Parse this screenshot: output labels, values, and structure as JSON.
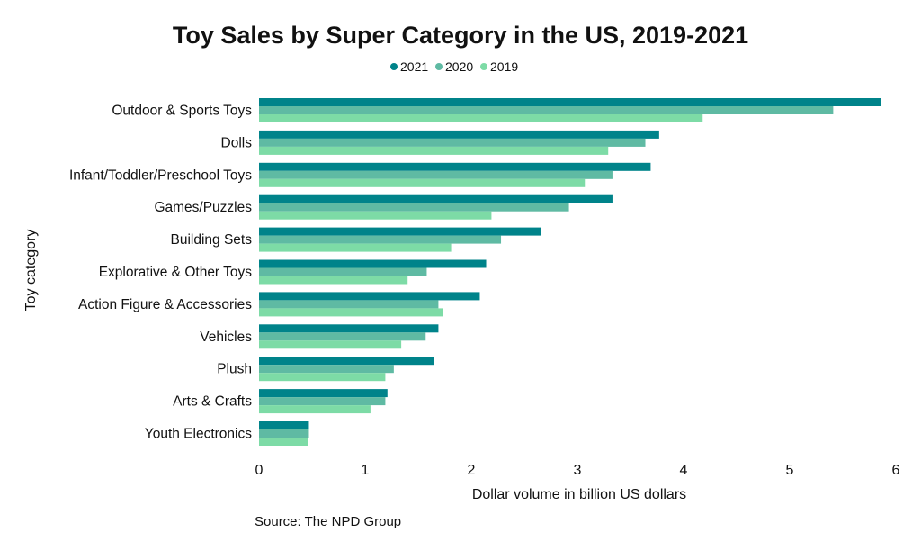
{
  "chart_data": {
    "type": "bar",
    "orientation": "horizontal",
    "title": "Toy Sales by Super Category in the US, 2019-2021",
    "xlabel": "Dollar volume in billion US dollars",
    "ylabel": "Toy category",
    "source": "Source: The NPD Group",
    "xlim": [
      0,
      6
    ],
    "xticks": [
      "0",
      "1",
      "2",
      "3",
      "4",
      "5",
      "6"
    ],
    "grid": false,
    "legend_position": "top",
    "categories": [
      "Outdoor & Sports Toys",
      "Dolls",
      "Infant/Toddler/Preschool Toys",
      "Games/Puzzles",
      "Building Sets",
      "Explorative & Other Toys",
      "Action Figure & Accessories",
      "Vehicles",
      "Plush",
      "Arts & Crafts",
      "Youth Electronics"
    ],
    "series": [
      {
        "name": "2021",
        "color": "#00838a",
        "values": [
          5.86,
          3.77,
          3.69,
          3.33,
          2.66,
          2.14,
          2.08,
          1.69,
          1.65,
          1.21,
          0.47
        ]
      },
      {
        "name": "2020",
        "color": "#5fbaa3",
        "values": [
          5.41,
          3.64,
          3.33,
          2.92,
          2.28,
          1.58,
          1.69,
          1.57,
          1.27,
          1.19,
          0.47
        ]
      },
      {
        "name": "2019",
        "color": "#7ddba6",
        "values": [
          4.18,
          3.29,
          3.07,
          2.19,
          1.81,
          1.4,
          1.73,
          1.34,
          1.19,
          1.05,
          0.46
        ]
      }
    ]
  }
}
